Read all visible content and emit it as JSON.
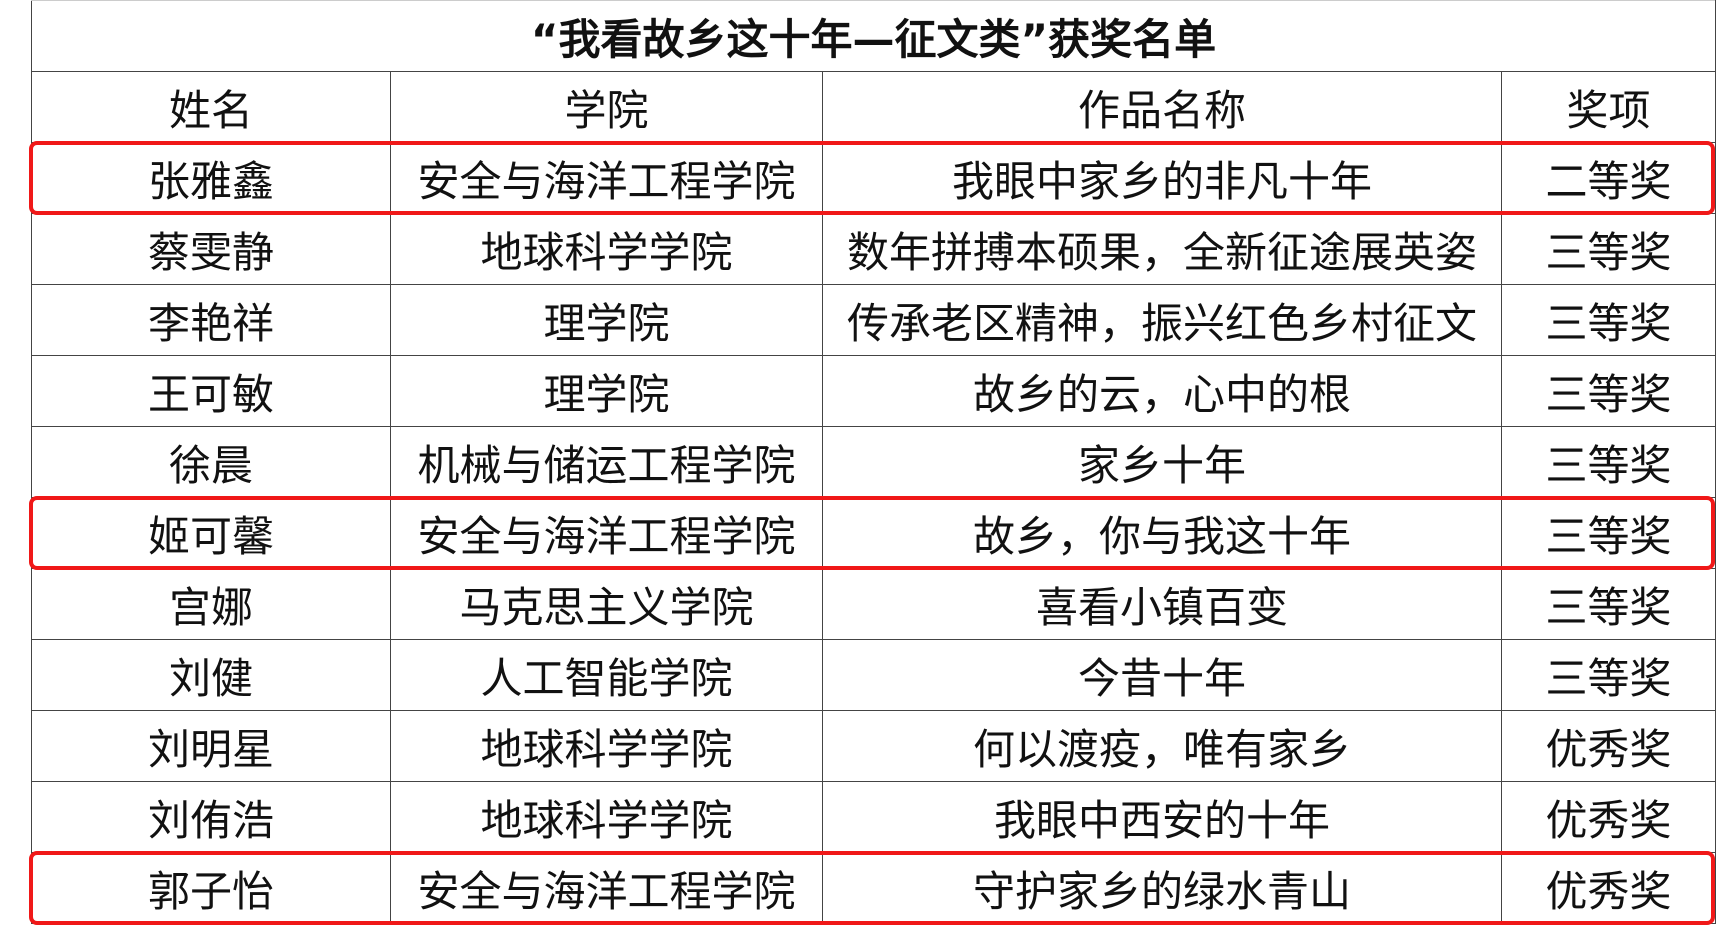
{
  "title": "“我看故乡这十年—征文类”获奖名单",
  "headers": [
    "姓名",
    "学院",
    "作品名称",
    "奖项"
  ],
  "rows": [
    [
      "张雅鑫",
      "安全与海洋工程学院",
      "我眼中家乡的非凡十年",
      "二等奖"
    ],
    [
      "蔡雯静",
      "地球科学学院",
      "数年拼搏本硕果，全新征途展英姿",
      "三等奖"
    ],
    [
      "李艳祥",
      "理学院",
      "传承老区精神，振兴红色乡村征文",
      "三等奖"
    ],
    [
      "王可敏",
      "理学院",
      "故乡的云，心中的根",
      "三等奖"
    ],
    [
      "徐晨",
      "机械与储运工程学院",
      "家乡十年",
      "三等奖"
    ],
    [
      "姬可馨",
      "安全与海洋工程学院",
      "故乡，你与我这十年",
      "三等奖"
    ],
    [
      "宫娜",
      "马克思主义学院",
      "喜看小镇百变",
      "三等奖"
    ],
    [
      "刘健",
      "人工智能学院",
      "今昔十年",
      "三等奖"
    ],
    [
      "刘明星",
      "地球科学学院",
      "何以渡疫，唯有家乡",
      "优秀奖"
    ],
    [
      "刘侑浩",
      "地球科学学院",
      "我眼中西安的十年",
      "优秀奖"
    ],
    [
      "郭子怡",
      "安全与海洋工程学院",
      "守护家乡的绿水青山",
      "优秀奖"
    ]
  ],
  "highlighted_rows": [
    0,
    5,
    10
  ],
  "highlight_color": "#f01818"
}
